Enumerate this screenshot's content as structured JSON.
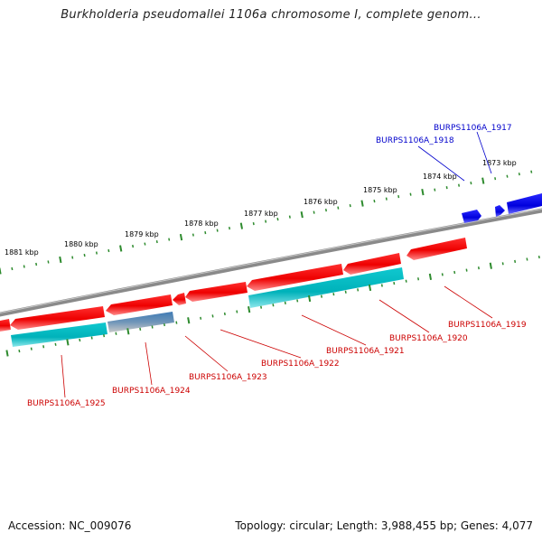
{
  "title": "Burkholderia pseudomallei 1106a chromosome I, complete genom...",
  "footer": {
    "accession": "Accession: NC_009076",
    "topology": "Topology: circular; Length: 3,988,455 bp; Genes: 4,077"
  },
  "ruler": {
    "unit": "kbp",
    "ticks": [
      {
        "kbp": 1881,
        "label": "1881 kbp"
      },
      {
        "kbp": 1880,
        "label": "1880 kbp"
      },
      {
        "kbp": 1879,
        "label": "1879 kbp"
      },
      {
        "kbp": 1878,
        "label": "1878 kbp"
      },
      {
        "kbp": 1877,
        "label": "1877 kbp"
      },
      {
        "kbp": 1876,
        "label": "1876 kbp"
      },
      {
        "kbp": 1875,
        "label": "1875 kbp"
      },
      {
        "kbp": 1874,
        "label": "1874 kbp"
      },
      {
        "kbp": 1873,
        "label": "1873 kbp"
      }
    ]
  },
  "genes": [
    {
      "name": "BURPS1106A_1917",
      "color": "#0000cc"
    },
    {
      "name": "BURPS1106A_1918",
      "color": "#0000cc"
    },
    {
      "name": "BURPS1106A_1919",
      "color": "#cc0000"
    },
    {
      "name": "BURPS1106A_1920",
      "color": "#cc0000"
    },
    {
      "name": "BURPS1106A_1921",
      "color": "#cc0000"
    },
    {
      "name": "BURPS1106A_1922",
      "color": "#cc0000"
    },
    {
      "name": "BURPS1106A_1923",
      "color": "#cc0000"
    },
    {
      "name": "BURPS1106A_1924",
      "color": "#cc0000"
    },
    {
      "name": "BURPS1106A_1925",
      "color": "#cc0000"
    }
  ],
  "colors": {
    "forward_strand": "#0000ee",
    "reverse_strand": "#ee0000",
    "feature_track": "#00bcc4",
    "backbone": "#888888",
    "ruler": "#2e8b2e"
  }
}
